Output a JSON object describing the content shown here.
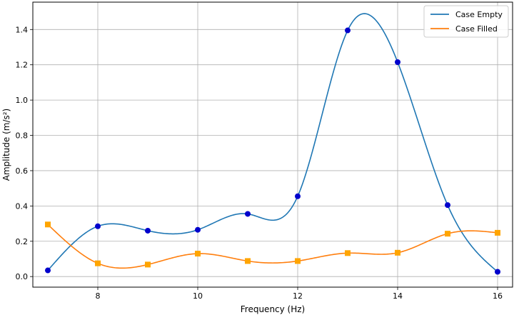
{
  "chart_data": {
    "type": "line",
    "xlabel": "Frequency (Hz)",
    "ylabel": "Amplitude (m/s²)",
    "xlim": [
      6.7,
      16.3
    ],
    "ylim": [
      -0.06,
      1.555
    ],
    "xticks": [
      8,
      10,
      12,
      14,
      16
    ],
    "yticks": [
      0.0,
      0.2,
      0.4,
      0.6,
      0.8,
      1.0,
      1.2,
      1.4
    ],
    "xtick_labels": [
      "8",
      "10",
      "12",
      "14",
      "16"
    ],
    "ytick_labels": [
      "0.0",
      "0.2",
      "0.4",
      "0.6",
      "0.8",
      "1.0",
      "1.2",
      "1.4"
    ],
    "grid": true,
    "legend_position": "top-right",
    "x": [
      7,
      8,
      9,
      10,
      11,
      12,
      13,
      14,
      15,
      16
    ],
    "series": [
      {
        "name": "Case Empty",
        "color": "#1f77b4",
        "marker": "circle",
        "marker_color": "#0000cc",
        "values": [
          0.035,
          0.285,
          0.26,
          0.265,
          0.355,
          0.455,
          1.395,
          1.215,
          0.405,
          0.027
        ]
      },
      {
        "name": "Case Filled",
        "color": "#ff7f0e",
        "marker": "square",
        "marker_color": "#ffa500",
        "values": [
          0.295,
          0.075,
          0.068,
          0.13,
          0.088,
          0.088,
          0.133,
          0.135,
          0.243,
          0.248
        ]
      }
    ]
  }
}
